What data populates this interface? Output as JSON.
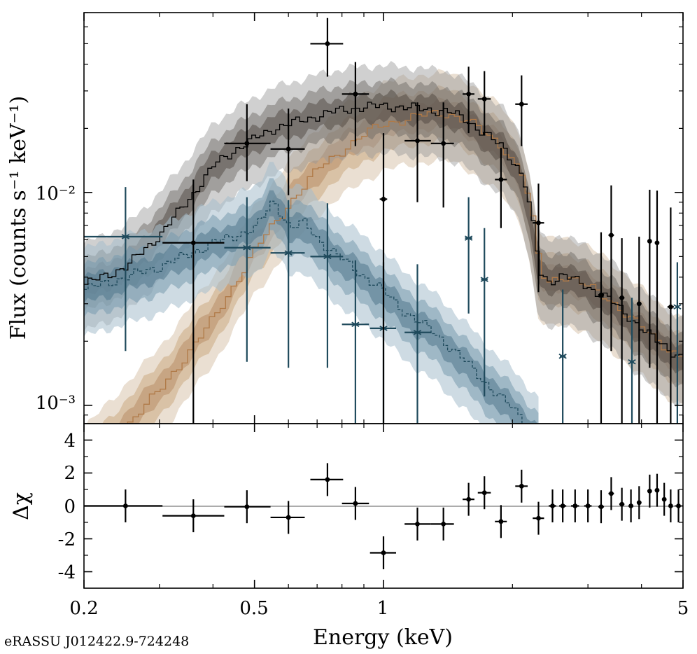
{
  "chart_data": [
    {
      "panel": "spectrum",
      "type": "line",
      "xlabel": "Energy (keV)",
      "ylabel": "Flux (counts s⁻¹ keV⁻¹)",
      "xscale": "log",
      "yscale": "log",
      "xlim": [
        0.2,
        5
      ],
      "ylim": [
        0.00082,
        0.07
      ],
      "xticks": [
        {
          "v": 0.2,
          "label": "0.2"
        },
        {
          "v": 0.5,
          "label": "0.5"
        },
        {
          "v": 1,
          "label": "1"
        },
        {
          "v": 5,
          "label": "5"
        }
      ],
      "yticks": [
        {
          "v": 0.001,
          "label": "10⁻³"
        },
        {
          "v": 0.01,
          "label": "10⁻²"
        }
      ],
      "total_model": {
        "color": "#000000",
        "x": [
          0.2,
          0.25,
          0.3,
          0.35,
          0.4,
          0.45,
          0.5,
          0.55,
          0.6,
          0.7,
          0.8,
          0.9,
          1.0,
          1.2,
          1.4,
          1.55,
          1.7,
          1.9,
          2.1,
          2.2,
          2.3,
          2.4,
          2.6,
          2.9,
          3.3,
          3.8,
          4.3,
          5.0
        ],
        "y": [
          0.0037,
          0.0045,
          0.0064,
          0.0094,
          0.0135,
          0.016,
          0.018,
          0.02,
          0.021,
          0.023,
          0.0245,
          0.0252,
          0.0255,
          0.0248,
          0.024,
          0.022,
          0.019,
          0.016,
          0.012,
          0.0075,
          0.0042,
          0.0038,
          0.0041,
          0.0037,
          0.0032,
          0.0025,
          0.002,
          0.00165
        ]
      },
      "soft_component": {
        "color": "#1f4a5c",
        "x": [
          0.2,
          0.3,
          0.4,
          0.5,
          0.55,
          0.6,
          0.65,
          0.7,
          0.8,
          0.9,
          1.0,
          1.1,
          1.3,
          1.5,
          1.7,
          2.0,
          2.3
        ],
        "y": [
          0.0035,
          0.0045,
          0.0058,
          0.0068,
          0.0092,
          0.0068,
          0.0072,
          0.006,
          0.0048,
          0.004,
          0.0034,
          0.0028,
          0.0022,
          0.0017,
          0.0013,
          0.00095,
          0.0007
        ]
      },
      "hard_component": {
        "color": "#b07a48",
        "x": [
          0.2,
          0.3,
          0.4,
          0.5,
          0.6,
          0.7,
          0.8,
          0.9,
          1.0,
          1.2,
          1.4,
          1.55,
          1.7,
          1.9,
          2.1,
          2.2,
          2.3,
          2.4,
          2.6,
          2.9,
          3.3,
          3.8,
          4.3,
          5.0
        ],
        "y": [
          0.0005,
          0.0012,
          0.0026,
          0.0055,
          0.009,
          0.013,
          0.016,
          0.019,
          0.021,
          0.023,
          0.0235,
          0.022,
          0.019,
          0.016,
          0.012,
          0.0075,
          0.0042,
          0.0038,
          0.0041,
          0.0037,
          0.0032,
          0.0025,
          0.002,
          0.00165
        ]
      },
      "data_points": {
        "color": "#000000",
        "points": [
          {
            "x": 0.36,
            "xlo": 0.305,
            "xhi": 0.425,
            "y": 0.0058,
            "ylo": 0.0008,
            "yhi": 0.0115
          },
          {
            "x": 0.48,
            "xlo": 0.425,
            "xhi": 0.545,
            "y": 0.017,
            "ylo": 0.0113,
            "yhi": 0.026
          },
          {
            "x": 0.6,
            "xlo": 0.545,
            "xhi": 0.655,
            "y": 0.016,
            "ylo": 0.0097,
            "yhi": 0.0248
          },
          {
            "x": 0.74,
            "xlo": 0.675,
            "xhi": 0.805,
            "y": 0.05,
            "ylo": 0.035,
            "yhi": 0.066
          },
          {
            "x": 0.86,
            "xlo": 0.8,
            "xhi": 0.925,
            "y": 0.029,
            "ylo": 0.0165,
            "yhi": 0.041
          },
          {
            "x": 1.0,
            "xlo": 0.98,
            "xhi": 1.02,
            "y": 0.0093,
            "ylo": 0.0008,
            "yhi": 0.019
          },
          {
            "x": 1.2,
            "xlo": 1.12,
            "xhi": 1.29,
            "y": 0.0175,
            "ylo": 0.009,
            "yhi": 0.0265
          },
          {
            "x": 1.38,
            "xlo": 1.29,
            "xhi": 1.46,
            "y": 0.017,
            "ylo": 0.0085,
            "yhi": 0.0265
          },
          {
            "x": 1.58,
            "xlo": 1.53,
            "xhi": 1.63,
            "y": 0.029,
            "ylo": 0.019,
            "yhi": 0.039
          },
          {
            "x": 1.72,
            "xlo": 1.66,
            "xhi": 1.78,
            "y": 0.0275,
            "ylo": 0.0185,
            "yhi": 0.0372
          },
          {
            "x": 1.88,
            "xlo": 1.82,
            "xhi": 1.94,
            "y": 0.0115,
            "ylo": 0.0068,
            "yhi": 0.0162
          },
          {
            "x": 2.1,
            "xlo": 2.03,
            "xhi": 2.17,
            "y": 0.026,
            "ylo": 0.0165,
            "yhi": 0.0355
          },
          {
            "x": 2.3,
            "xlo": 2.23,
            "xhi": 2.37,
            "y": 0.0072,
            "ylo": 0.0034,
            "yhi": 0.011
          },
          {
            "x": 3.22,
            "xlo": 3.17,
            "xhi": 3.27,
            "y": 0.0033,
            "ylo": 0.0008,
            "yhi": 0.0065
          },
          {
            "x": 3.4,
            "xlo": 3.35,
            "xhi": 3.45,
            "y": 0.0063,
            "ylo": 0.0018,
            "yhi": 0.0108
          },
          {
            "x": 3.6,
            "xlo": 3.55,
            "xhi": 3.65,
            "y": 0.0032,
            "ylo": 0.0008,
            "yhi": 0.0061
          },
          {
            "x": 3.95,
            "xlo": 3.9,
            "xhi": 4.0,
            "y": 0.003,
            "ylo": 0.0008,
            "yhi": 0.0062
          },
          {
            "x": 4.18,
            "xlo": 4.13,
            "xhi": 4.23,
            "y": 0.0059,
            "ylo": 0.0015,
            "yhi": 0.0103
          },
          {
            "x": 4.35,
            "xlo": 4.3,
            "xhi": 4.4,
            "y": 0.0058,
            "ylo": 0.0008,
            "yhi": 0.0102
          },
          {
            "x": 4.68,
            "xlo": 4.6,
            "xhi": 4.76,
            "y": 0.0029,
            "ylo": 0.0008,
            "yhi": 0.0085
          }
        ]
      },
      "background_points": {
        "color": "#1f4a5c",
        "points": [
          {
            "x": 0.25,
            "xlo": 0.2,
            "xhi": 0.305,
            "y": 0.0062,
            "ylo": 0.0018,
            "yhi": 0.0106
          },
          {
            "x": 0.48,
            "xlo": 0.425,
            "xhi": 0.545,
            "y": 0.0055,
            "ylo": 0.0016,
            "yhi": 0.0095
          },
          {
            "x": 0.6,
            "xlo": 0.545,
            "xhi": 0.655,
            "y": 0.0052,
            "ylo": 0.0015,
            "yhi": 0.0092
          },
          {
            "x": 0.74,
            "xlo": 0.675,
            "xhi": 0.805,
            "y": 0.005,
            "ylo": 0.0015,
            "yhi": 0.0089
          },
          {
            "x": 0.86,
            "xlo": 0.8,
            "xhi": 0.925,
            "y": 0.0024,
            "ylo": 0.0008,
            "yhi": 0.0048
          },
          {
            "x": 1.0,
            "xlo": 0.93,
            "xhi": 1.07,
            "y": 0.0023,
            "ylo": 0.0008,
            "yhi": 0.0047
          },
          {
            "x": 1.2,
            "xlo": 1.12,
            "xhi": 1.29,
            "y": 0.0022,
            "ylo": 0.0008,
            "yhi": 0.0046
          },
          {
            "x": 1.58,
            "xlo": 1.55,
            "xhi": 1.61,
            "y": 0.0061,
            "ylo": 0.0027,
            "yhi": 0.0095
          },
          {
            "x": 1.72,
            "xlo": 1.69,
            "xhi": 1.75,
            "y": 0.0039,
            "ylo": 0.0011,
            "yhi": 0.0068
          },
          {
            "x": 2.62,
            "xlo": 2.58,
            "xhi": 2.66,
            "y": 0.0017,
            "ylo": 0.0008,
            "yhi": 0.0035
          },
          {
            "x": 3.8,
            "xlo": 3.76,
            "xhi": 3.84,
            "y": 0.0016,
            "ylo": 0.0008,
            "yhi": 0.0032
          },
          {
            "x": 4.85,
            "xlo": 4.81,
            "xhi": 4.89,
            "y": 0.0029,
            "ylo": 0.0008,
            "yhi": 0.0047
          }
        ]
      }
    },
    {
      "panel": "residuals",
      "type": "scatter",
      "xlabel": "Energy (keV)",
      "ylabel": "Δχ",
      "xscale": "log",
      "xlim": [
        0.2,
        5
      ],
      "ylim": [
        -5,
        5
      ],
      "xticks": [
        {
          "v": 0.2,
          "label": "0.2"
        },
        {
          "v": 0.5,
          "label": "0.5"
        },
        {
          "v": 1,
          "label": "1"
        },
        {
          "v": 5,
          "label": "5"
        }
      ],
      "yticks": [
        {
          "v": 4,
          "label": "4"
        },
        {
          "v": 2,
          "label": "2"
        },
        {
          "v": 0,
          "label": "0"
        },
        {
          "v": -2,
          "label": "-2"
        },
        {
          "v": -4,
          "label": "-4"
        }
      ],
      "points": [
        {
          "x": 0.25,
          "xlo": 0.2,
          "xhi": 0.305,
          "y": 0.0,
          "ylo": -1.0,
          "yhi": 1.0
        },
        {
          "x": 0.36,
          "xlo": 0.305,
          "xhi": 0.425,
          "y": -0.6,
          "ylo": -1.6,
          "yhi": 0.4
        },
        {
          "x": 0.48,
          "xlo": 0.425,
          "xhi": 0.545,
          "y": -0.05,
          "ylo": -1.05,
          "yhi": 0.95
        },
        {
          "x": 0.6,
          "xlo": 0.545,
          "xhi": 0.655,
          "y": -0.7,
          "ylo": -1.7,
          "yhi": 0.3
        },
        {
          "x": 0.74,
          "xlo": 0.675,
          "xhi": 0.805,
          "y": 1.6,
          "ylo": 0.6,
          "yhi": 2.6
        },
        {
          "x": 0.86,
          "xlo": 0.8,
          "xhi": 0.925,
          "y": 0.15,
          "ylo": -0.85,
          "yhi": 1.15
        },
        {
          "x": 1.0,
          "xlo": 0.93,
          "xhi": 1.07,
          "y": -2.85,
          "ylo": -3.85,
          "yhi": -1.85
        },
        {
          "x": 1.2,
          "xlo": 1.12,
          "xhi": 1.29,
          "y": -1.1,
          "ylo": -2.1,
          "yhi": -0.1
        },
        {
          "x": 1.38,
          "xlo": 1.29,
          "xhi": 1.46,
          "y": -1.1,
          "ylo": -2.1,
          "yhi": -0.1
        },
        {
          "x": 1.58,
          "xlo": 1.53,
          "xhi": 1.63,
          "y": 0.4,
          "ylo": -0.6,
          "yhi": 1.4
        },
        {
          "x": 1.72,
          "xlo": 1.66,
          "xhi": 1.78,
          "y": 0.8,
          "ylo": -0.2,
          "yhi": 1.8
        },
        {
          "x": 1.88,
          "xlo": 1.82,
          "xhi": 1.94,
          "y": -0.95,
          "ylo": -1.95,
          "yhi": 0.05
        },
        {
          "x": 2.1,
          "xlo": 2.03,
          "xhi": 2.17,
          "y": 1.2,
          "ylo": 0.2,
          "yhi": 2.2
        },
        {
          "x": 2.3,
          "xlo": 2.23,
          "xhi": 2.37,
          "y": -0.75,
          "ylo": -1.75,
          "yhi": 0.25
        },
        {
          "x": 2.48,
          "xlo": 2.43,
          "xhi": 2.53,
          "y": 0.0,
          "ylo": -1.0,
          "yhi": 1.0
        },
        {
          "x": 2.62,
          "xlo": 2.57,
          "xhi": 2.67,
          "y": 0.0,
          "ylo": -1.0,
          "yhi": 1.0
        },
        {
          "x": 2.8,
          "xlo": 2.74,
          "xhi": 2.86,
          "y": 0.0,
          "ylo": -1.0,
          "yhi": 1.0
        },
        {
          "x": 3.0,
          "xlo": 2.94,
          "xhi": 3.06,
          "y": 0.0,
          "ylo": -1.0,
          "yhi": 1.0
        },
        {
          "x": 3.22,
          "xlo": 3.17,
          "xhi": 3.27,
          "y": -0.05,
          "ylo": -1.05,
          "yhi": 0.95
        },
        {
          "x": 3.4,
          "xlo": 3.35,
          "xhi": 3.45,
          "y": 0.75,
          "ylo": -0.25,
          "yhi": 1.75
        },
        {
          "x": 3.6,
          "xlo": 3.55,
          "xhi": 3.65,
          "y": 0.1,
          "ylo": -0.9,
          "yhi": 1.1
        },
        {
          "x": 3.78,
          "xlo": 3.73,
          "xhi": 3.83,
          "y": 0.0,
          "ylo": -1.0,
          "yhi": 1.0
        },
        {
          "x": 3.95,
          "xlo": 3.9,
          "xhi": 4.0,
          "y": 0.2,
          "ylo": -0.8,
          "yhi": 1.2
        },
        {
          "x": 4.18,
          "xlo": 4.13,
          "xhi": 4.23,
          "y": 0.9,
          "ylo": -0.1,
          "yhi": 1.9
        },
        {
          "x": 4.35,
          "xlo": 4.3,
          "xhi": 4.4,
          "y": 0.95,
          "ylo": -0.05,
          "yhi": 1.95
        },
        {
          "x": 4.52,
          "xlo": 4.47,
          "xhi": 4.57,
          "y": 0.4,
          "ylo": -0.6,
          "yhi": 1.4
        },
        {
          "x": 4.68,
          "xlo": 4.63,
          "xhi": 4.73,
          "y": 0.0,
          "ylo": -1.0,
          "yhi": 1.0
        },
        {
          "x": 4.88,
          "xlo": 4.83,
          "xhi": 4.93,
          "y": 0.0,
          "ylo": -1.0,
          "yhi": 1.0
        }
      ]
    }
  ],
  "figure": {
    "source_name": "eRASSU J012422.9-724248",
    "xlabel": "Energy (keV)",
    "top_ylabel": "Flux (counts s⁻¹ keV⁻¹)",
    "bottom_ylabel": "Δχ"
  }
}
